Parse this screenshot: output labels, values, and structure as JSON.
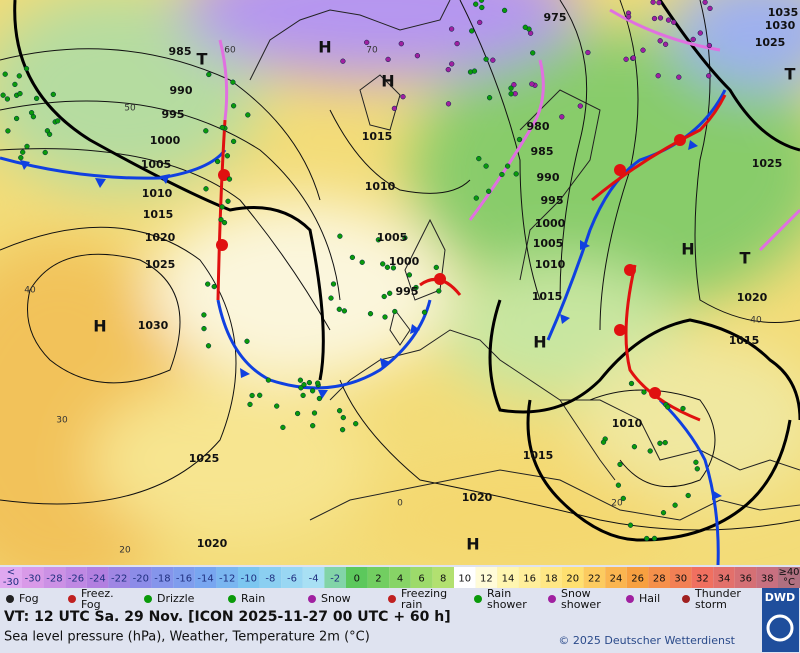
{
  "map": {
    "isobar_labels": [
      985,
      990,
      995,
      1000,
      1005,
      1010,
      1015,
      1020,
      1025,
      1030,
      1010,
      1005,
      1000,
      995,
      1015,
      975,
      980,
      985,
      990,
      995,
      1000,
      1005,
      1010,
      1015,
      1020,
      1015,
      1025,
      1030,
      1035,
      1025,
      1010,
      1015,
      1025,
      1020,
      1020
    ],
    "pressure_centers": [
      "T",
      "H",
      "H",
      "H",
      "H",
      "H",
      "T",
      "H",
      "T"
    ],
    "isotherm_labels": [
      60,
      50,
      40,
      30,
      20,
      40,
      0,
      20,
      70
    ]
  },
  "scale": {
    "low_label": [
      "<",
      "-30"
    ],
    "values": [
      -30,
      -28,
      -26,
      -24,
      -22,
      -20,
      -18,
      -16,
      -14,
      -12,
      -10,
      -8,
      -6,
      -4,
      -2,
      0,
      2,
      4,
      6,
      8,
      10,
      12,
      14,
      16,
      18,
      20,
      22,
      24,
      26,
      28,
      30,
      32,
      34,
      36,
      38
    ],
    "high_label": [
      "≥40",
      "°C"
    ]
  },
  "legend": [
    {
      "lines": [
        "Fog"
      ]
    },
    {
      "lines": [
        "Freez.",
        "Fog"
      ]
    },
    {
      "lines": [
        "Drizzle"
      ]
    },
    {
      "lines": [
        "Rain"
      ]
    },
    {
      "lines": [
        "Snow"
      ]
    },
    {
      "lines": [
        "Freezing",
        "rain"
      ]
    },
    {
      "lines": [
        "Rain",
        "shower"
      ]
    },
    {
      "lines": [
        "Snow",
        "shower"
      ]
    },
    {
      "lines": [
        "Hail"
      ]
    },
    {
      "lines": [
        "Thunder",
        "storm"
      ]
    }
  ],
  "footer": {
    "valid_time": "VT: 12 UTC Sa.  29 Nov. [ICON 2025-11-27  00 UTC + 60 h]",
    "description": "Sea level pressure (hPa), Weather, Temperature 2m (°C)",
    "copyright": "© 2025 Deutscher Wetterdienst",
    "logo": "DWD"
  }
}
